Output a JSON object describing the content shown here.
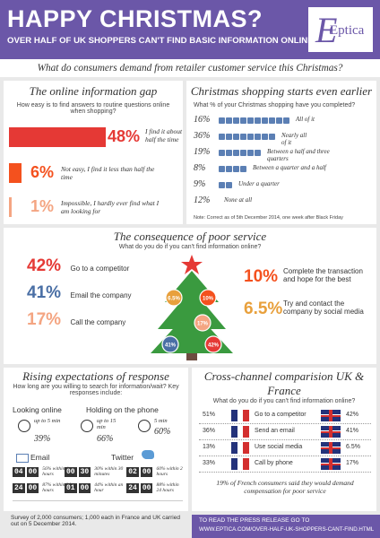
{
  "header": {
    "title": "HAPPY CHRISTMAS?",
    "subtitle": "OVER HALF OF UK SHOPPERS CAN'T FIND BASIC INFORMATION ONLINE",
    "brand": "Eptica",
    "brand_color": "#6b57a8"
  },
  "question": "What do consumers demand from retailer customer service this Christmas?",
  "online_gap": {
    "title": "The online information gap",
    "prompt": "How easy is to find answers to routine questions online when shopping?",
    "items": [
      {
        "pct": "48%",
        "label": "I find it about half the time",
        "value": 48
      },
      {
        "pct": "6%",
        "label": "Not easy, I find it less than half the time",
        "value": 6
      },
      {
        "pct": "1%",
        "label": "Impossible, I hardly ever find what I am looking for",
        "value": 1
      }
    ]
  },
  "shopping": {
    "title": "Christmas shopping starts even earlier",
    "prompt": "What % of your Christmas shopping have you completed?",
    "items": [
      {
        "pct": "16%",
        "label": "All of it",
        "count": 10
      },
      {
        "pct": "36%",
        "label": "Nearly all of it",
        "count": 8
      },
      {
        "pct": "19%",
        "label": "Between a half and three quarters",
        "count": 6
      },
      {
        "pct": "8%",
        "label": "Between a quarter and a half",
        "count": 4
      },
      {
        "pct": "9%",
        "label": "Under a quarter",
        "count": 2
      },
      {
        "pct": "12%",
        "label": "None at all",
        "count": 0
      }
    ],
    "note": "Note: Correct as of 5th December 2014, one week after Black Friday"
  },
  "consequence": {
    "title": "The consequence of poor service",
    "prompt": "What do you do if you can't find information online?",
    "left": [
      {
        "pct": "42%",
        "label": "Go to a competitor",
        "color": "#e53935"
      },
      {
        "pct": "41%",
        "label": "Email the company",
        "color": "#4a6fa5"
      },
      {
        "pct": "17%",
        "label": "Call the company",
        "color": "#f4a582"
      }
    ],
    "right": [
      {
        "pct": "10%",
        "label": "Complete the transaction and hope for the best",
        "color": "#f4511e"
      },
      {
        "pct": "6.5%",
        "label": "Try and contact the company by social media",
        "color": "#e8a03c"
      }
    ],
    "tree": {
      "balls": [
        {
          "label": "6.5%",
          "color": "#e8a03c"
        },
        {
          "label": "10%",
          "color": "#f4511e"
        },
        {
          "label": "17%",
          "color": "#f4a582"
        },
        {
          "label": "41%",
          "color": "#4a6fa5"
        },
        {
          "label": "42%",
          "color": "#e53935"
        }
      ]
    }
  },
  "expectations": {
    "title": "Rising expectations of response",
    "prompt": "How long are you willing to search for information/wait? Key responses include:",
    "looking_online": {
      "label": "Looking online",
      "time": "up to 5 min",
      "pct": "39%"
    },
    "phone": {
      "label": "Holding on the phone",
      "a": {
        "time": "up to 15 min",
        "pct": "66%"
      },
      "b": {
        "time": "5 min",
        "pct": "60%"
      }
    },
    "email": {
      "label": "Email",
      "rows": [
        {
          "d1": "04",
          "d2": "00",
          "text": "56% within 4 hours"
        },
        {
          "d1": "24",
          "d2": "00",
          "text": "87% within 24 hours"
        }
      ]
    },
    "twitter": {
      "label": "Twitter",
      "rows": [
        {
          "d1": "00",
          "d2": "30",
          "text": "30% within 30 minutes",
          "e1": "02",
          "e2": "00",
          "text2": "60% within 2 hours"
        },
        {
          "d1": "01",
          "d2": "00",
          "text": "44% within an hour",
          "e1": "24",
          "e2": "00",
          "text2": "88% within 24 hours"
        }
      ]
    },
    "survey": "Survey of 2,000 consumers; 1,000 each in France and UK carried out on 5 December 2014."
  },
  "cross": {
    "title": "Cross-channel comparision UK & France",
    "prompt": "What do you do if you can't find information online?",
    "rows": [
      {
        "fr": "51%",
        "label": "Go to a competitor",
        "uk": "42%"
      },
      {
        "fr": "36%",
        "label": "Send an email",
        "uk": "41%"
      },
      {
        "fr": "13%",
        "label": "Use social media",
        "uk": "6.5%"
      },
      {
        "fr": "33%",
        "label": "Call by phone",
        "uk": "17%"
      }
    ],
    "footnote": "19% of French consumers said they would demand compensation for poor service"
  },
  "footer": {
    "line1": "TO READ THE PRESS RELEASE GO TO",
    "line2": "WWW.EPTICA.COM/OVER-HALF-UK-SHOPPERS-CANT-FIND.HTML"
  }
}
